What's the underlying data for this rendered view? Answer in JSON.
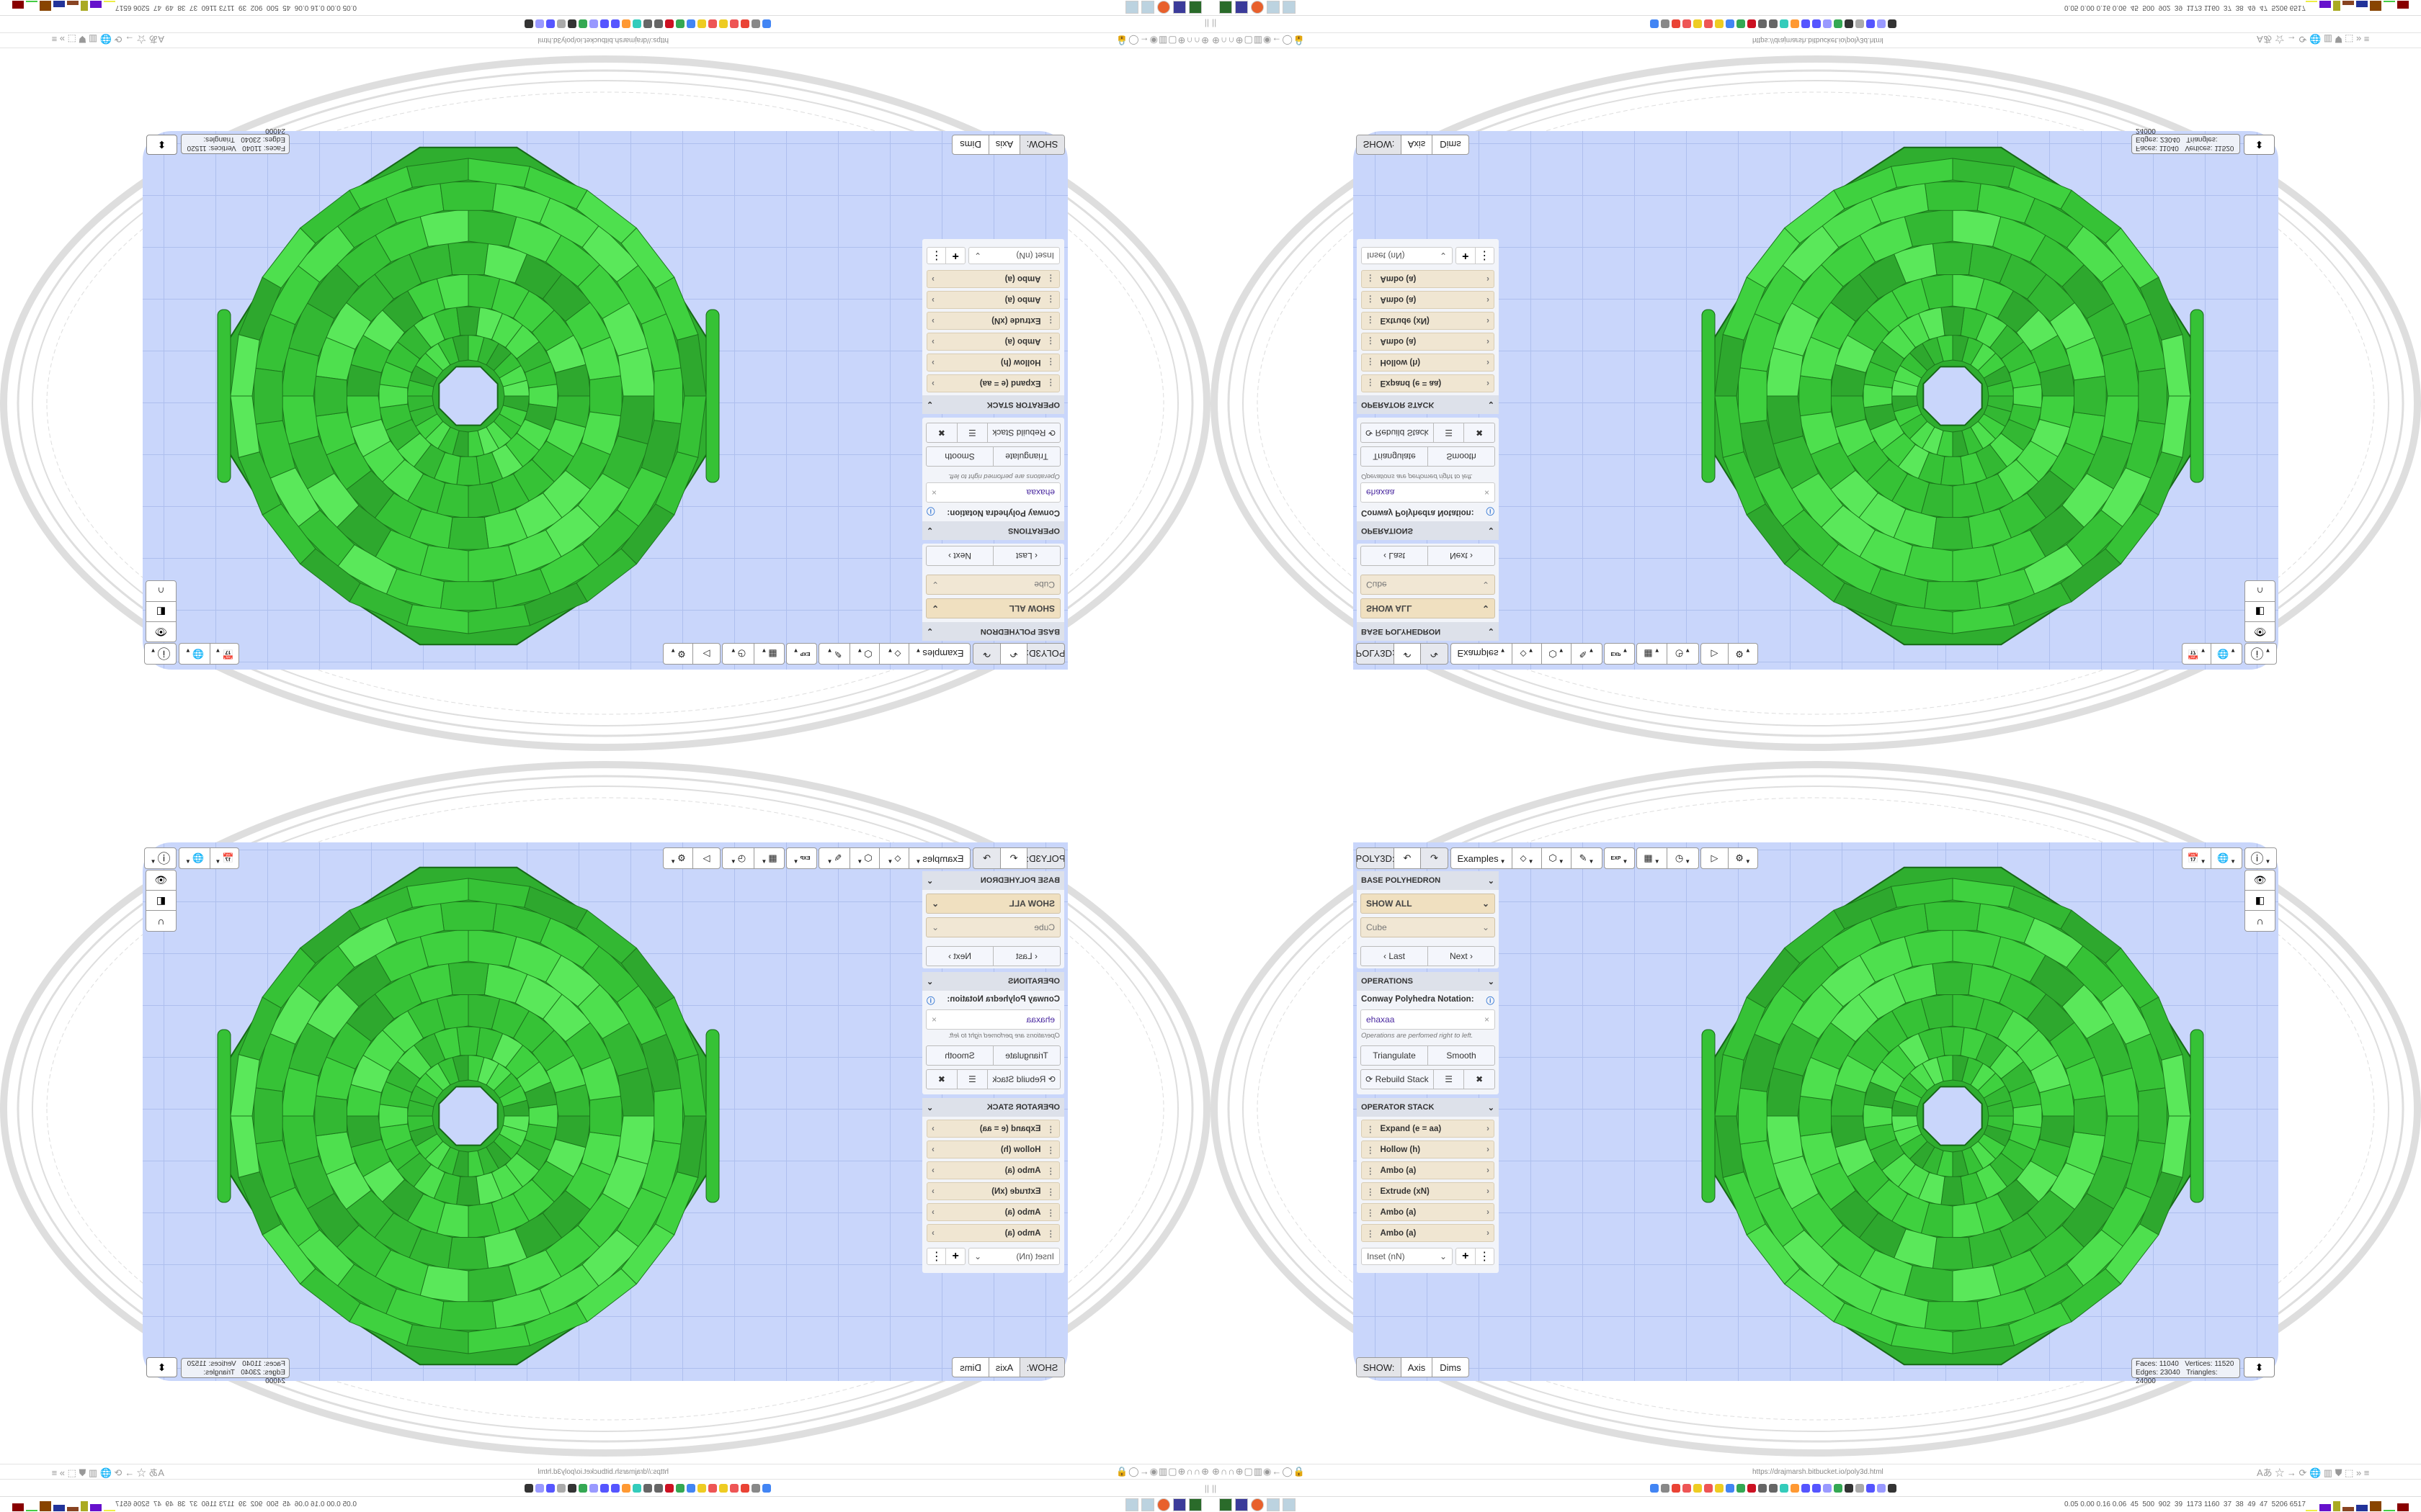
{
  "colors": {
    "canvas": "#c9d6fb",
    "polyhedron": "#3ccf3c",
    "panel_select": "#f0e0c0",
    "operator_item": "#f0e6d2",
    "notation_text": "#4b2aa0"
  },
  "toolbar": {
    "app_label": "POLY3D:",
    "undo_icon": "undo-icon",
    "redo_icon": "redo-icon",
    "examples_label": "Examples",
    "icons": [
      "paint-bucket-icon",
      "cube-render-icon",
      "edit-icon",
      "export-icon",
      "grid-calendar-icon",
      "clock-icon",
      "play-icon",
      "settings-icon"
    ],
    "export_text": "EXP"
  },
  "base_polyhedron": {
    "header": "BASE POLYHEDRON",
    "filter": "SHOW ALL",
    "selected": "Cube",
    "last_label": "Last",
    "next_label": "Next"
  },
  "operations": {
    "header": "OPERATIONS",
    "notation_label": "Conway Polyhedra Notation:",
    "notation_value": "ehaxaa",
    "note": "Operations are perfomed right to left.",
    "triangulate_label": "Triangulate",
    "smooth_label": "Smooth",
    "rebuild_label": "Rebuild Stack"
  },
  "operator_stack": {
    "header": "OPERATOR STACK",
    "items": [
      {
        "label": "Expand (e = aa)"
      },
      {
        "label": "Hollow (h)"
      },
      {
        "label": "Ambo (a)"
      },
      {
        "label": "Extrude (xN)"
      },
      {
        "label": "Ambo (a)"
      },
      {
        "label": "Ambo (a)"
      }
    ],
    "add_select": "Inset (nN)"
  },
  "show_bar": {
    "show_label": "SHOW:",
    "axis_label": "Axis",
    "dims_label": "Dims"
  },
  "stats": {
    "faces_label": "Faces:",
    "faces": "11040",
    "vertices_label": "Vertices:",
    "vertices": "11520",
    "edges_label": "Edges:",
    "edges": "23040",
    "triangles_label": "Triangles:",
    "triangles": "24000"
  },
  "browser": {
    "url": "https://drajmarsh.bitbucket.io/poly3d.html"
  },
  "taskbar": {
    "stats": "0.05 0.00 0.16 0.06  45  500  902  39  1173 1160  37  38  49  47  5206 6517"
  }
}
